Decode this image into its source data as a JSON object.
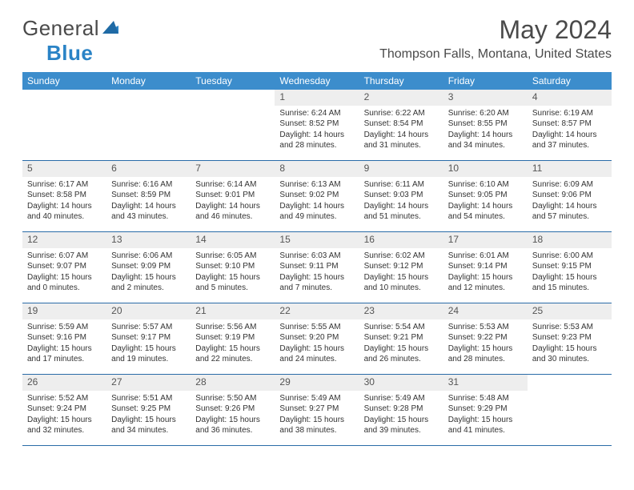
{
  "logo": {
    "word1": "General",
    "word2": "Blue"
  },
  "title": "May 2024",
  "location": "Thompson Falls, Montana, United States",
  "colors": {
    "header_bg": "#3c8dcc",
    "header_text": "#ffffff",
    "daynum_bg": "#eeeeee",
    "border": "#2a6ca8",
    "logo_blue": "#2a83c6",
    "text": "#333333"
  },
  "day_headers": [
    "Sunday",
    "Monday",
    "Tuesday",
    "Wednesday",
    "Thursday",
    "Friday",
    "Saturday"
  ],
  "weeks": [
    [
      null,
      null,
      null,
      {
        "num": "1",
        "sunrise": "6:24 AM",
        "sunset": "8:52 PM",
        "dl_h": "14",
        "dl_m": "28"
      },
      {
        "num": "2",
        "sunrise": "6:22 AM",
        "sunset": "8:54 PM",
        "dl_h": "14",
        "dl_m": "31"
      },
      {
        "num": "3",
        "sunrise": "6:20 AM",
        "sunset": "8:55 PM",
        "dl_h": "14",
        "dl_m": "34"
      },
      {
        "num": "4",
        "sunrise": "6:19 AM",
        "sunset": "8:57 PM",
        "dl_h": "14",
        "dl_m": "37"
      }
    ],
    [
      {
        "num": "5",
        "sunrise": "6:17 AM",
        "sunset": "8:58 PM",
        "dl_h": "14",
        "dl_m": "40"
      },
      {
        "num": "6",
        "sunrise": "6:16 AM",
        "sunset": "8:59 PM",
        "dl_h": "14",
        "dl_m": "43"
      },
      {
        "num": "7",
        "sunrise": "6:14 AM",
        "sunset": "9:01 PM",
        "dl_h": "14",
        "dl_m": "46"
      },
      {
        "num": "8",
        "sunrise": "6:13 AM",
        "sunset": "9:02 PM",
        "dl_h": "14",
        "dl_m": "49"
      },
      {
        "num": "9",
        "sunrise": "6:11 AM",
        "sunset": "9:03 PM",
        "dl_h": "14",
        "dl_m": "51"
      },
      {
        "num": "10",
        "sunrise": "6:10 AM",
        "sunset": "9:05 PM",
        "dl_h": "14",
        "dl_m": "54"
      },
      {
        "num": "11",
        "sunrise": "6:09 AM",
        "sunset": "9:06 PM",
        "dl_h": "14",
        "dl_m": "57"
      }
    ],
    [
      {
        "num": "12",
        "sunrise": "6:07 AM",
        "sunset": "9:07 PM",
        "dl_h": "15",
        "dl_m": "0"
      },
      {
        "num": "13",
        "sunrise": "6:06 AM",
        "sunset": "9:09 PM",
        "dl_h": "15",
        "dl_m": "2"
      },
      {
        "num": "14",
        "sunrise": "6:05 AM",
        "sunset": "9:10 PM",
        "dl_h": "15",
        "dl_m": "5"
      },
      {
        "num": "15",
        "sunrise": "6:03 AM",
        "sunset": "9:11 PM",
        "dl_h": "15",
        "dl_m": "7"
      },
      {
        "num": "16",
        "sunrise": "6:02 AM",
        "sunset": "9:12 PM",
        "dl_h": "15",
        "dl_m": "10"
      },
      {
        "num": "17",
        "sunrise": "6:01 AM",
        "sunset": "9:14 PM",
        "dl_h": "15",
        "dl_m": "12"
      },
      {
        "num": "18",
        "sunrise": "6:00 AM",
        "sunset": "9:15 PM",
        "dl_h": "15",
        "dl_m": "15"
      }
    ],
    [
      {
        "num": "19",
        "sunrise": "5:59 AM",
        "sunset": "9:16 PM",
        "dl_h": "15",
        "dl_m": "17"
      },
      {
        "num": "20",
        "sunrise": "5:57 AM",
        "sunset": "9:17 PM",
        "dl_h": "15",
        "dl_m": "19"
      },
      {
        "num": "21",
        "sunrise": "5:56 AM",
        "sunset": "9:19 PM",
        "dl_h": "15",
        "dl_m": "22"
      },
      {
        "num": "22",
        "sunrise": "5:55 AM",
        "sunset": "9:20 PM",
        "dl_h": "15",
        "dl_m": "24"
      },
      {
        "num": "23",
        "sunrise": "5:54 AM",
        "sunset": "9:21 PM",
        "dl_h": "15",
        "dl_m": "26"
      },
      {
        "num": "24",
        "sunrise": "5:53 AM",
        "sunset": "9:22 PM",
        "dl_h": "15",
        "dl_m": "28"
      },
      {
        "num": "25",
        "sunrise": "5:53 AM",
        "sunset": "9:23 PM",
        "dl_h": "15",
        "dl_m": "30"
      }
    ],
    [
      {
        "num": "26",
        "sunrise": "5:52 AM",
        "sunset": "9:24 PM",
        "dl_h": "15",
        "dl_m": "32"
      },
      {
        "num": "27",
        "sunrise": "5:51 AM",
        "sunset": "9:25 PM",
        "dl_h": "15",
        "dl_m": "34"
      },
      {
        "num": "28",
        "sunrise": "5:50 AM",
        "sunset": "9:26 PM",
        "dl_h": "15",
        "dl_m": "36"
      },
      {
        "num": "29",
        "sunrise": "5:49 AM",
        "sunset": "9:27 PM",
        "dl_h": "15",
        "dl_m": "38"
      },
      {
        "num": "30",
        "sunrise": "5:49 AM",
        "sunset": "9:28 PM",
        "dl_h": "15",
        "dl_m": "39"
      },
      {
        "num": "31",
        "sunrise": "5:48 AM",
        "sunset": "9:29 PM",
        "dl_h": "15",
        "dl_m": "41"
      },
      null
    ]
  ],
  "labels": {
    "sunrise": "Sunrise:",
    "sunset": "Sunset:",
    "daylight_prefix": "Daylight:",
    "hours_word": "hours",
    "and_word": "and",
    "minutes_word": "minutes."
  }
}
